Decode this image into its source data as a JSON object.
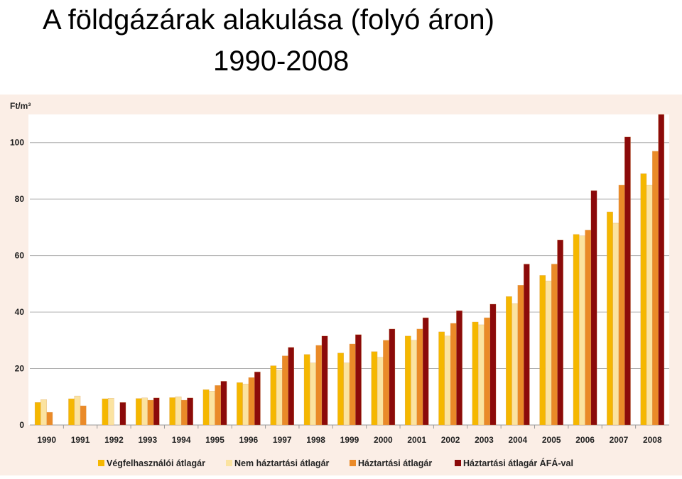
{
  "slide": {
    "title": "A földgázárak alakulása (folyó áron)",
    "subtitle": "1990-2008"
  },
  "chart_data": {
    "type": "bar",
    "ylabel": "Ft/m³",
    "ylim": [
      0,
      110
    ],
    "yticks": [
      0,
      20,
      40,
      60,
      80,
      100
    ],
    "grid": true,
    "legend_position": "bottom",
    "categories": [
      "1990",
      "1991",
      "1992",
      "1993",
      "1994",
      "1995",
      "1996",
      "1997",
      "1998",
      "1999",
      "2000",
      "2001",
      "2002",
      "2003",
      "2004",
      "2005",
      "2006",
      "2007",
      "2008"
    ],
    "series": [
      {
        "name": "Végfelhasználói átlagár",
        "color": "#f5b700",
        "values": [
          8,
          9.3,
          9.3,
          9.4,
          9.7,
          12.5,
          15,
          21,
          25,
          25.5,
          26,
          31.5,
          33,
          36.5,
          45.5,
          53,
          67.5,
          75.5,
          89
        ]
      },
      {
        "name": "Nem háztartási átlagár",
        "color": "#fbe3a0",
        "values": [
          9,
          10.3,
          9.5,
          9.6,
          10,
          12,
          14.5,
          19.5,
          22,
          22,
          24,
          30,
          31.5,
          35.5,
          43,
          51,
          67,
          71.5,
          85
        ]
      },
      {
        "name": "Háztartási átlagár",
        "color": "#ea8a28",
        "values": [
          4.5,
          6.8,
          null,
          8.8,
          8.8,
          14,
          16.8,
          24.5,
          28.2,
          28.7,
          30,
          34,
          36,
          38,
          49.5,
          57,
          69,
          85,
          97
        ]
      },
      {
        "name": "Háztartási átlagár ÁFÁ-val",
        "color": "#8b0a0a",
        "values": [
          null,
          null,
          8,
          9.6,
          9.6,
          15.5,
          18.8,
          27.5,
          31.5,
          32,
          34,
          38,
          40.5,
          42.8,
          57,
          65.5,
          83,
          102,
          110
        ]
      }
    ]
  }
}
